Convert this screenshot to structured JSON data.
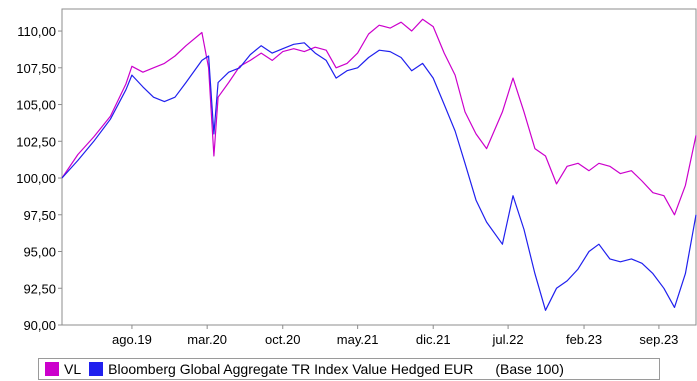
{
  "chart_data": {
    "type": "line",
    "title": "",
    "xlabel": "",
    "ylabel": "",
    "ylim": [
      90,
      111.5
    ],
    "xlim": [
      "2019-01-15",
      "2023-12-15"
    ],
    "yticks": [
      "90,00",
      "92,50",
      "95,00",
      "97,50",
      "100,00",
      "102,50",
      "105,00",
      "107,50",
      "110,00"
    ],
    "ytick_values": [
      90,
      92.5,
      95,
      97.5,
      100,
      102.5,
      105,
      107.5,
      110
    ],
    "xticks": [
      "ago.19",
      "mar.20",
      "oct.20",
      "may.21",
      "dic.21",
      "jul.22",
      "feb.23",
      "sep.23"
    ],
    "xtick_values": [
      "2019-08-01",
      "2020-03-01",
      "2020-10-01",
      "2021-05-01",
      "2021-12-01",
      "2022-07-01",
      "2023-02-01",
      "2023-09-01"
    ],
    "grid": false,
    "legend_position": "bottom",
    "legend_note": "(Base 100)",
    "x": [
      "2019-01-15",
      "2019-03-01",
      "2019-04-15",
      "2019-06-01",
      "2019-07-15",
      "2019-08-01",
      "2019-09-01",
      "2019-10-01",
      "2019-11-01",
      "2019-12-01",
      "2020-01-01",
      "2020-02-15",
      "2020-03-05",
      "2020-03-20",
      "2020-04-01",
      "2020-05-01",
      "2020-06-01",
      "2020-07-01",
      "2020-08-01",
      "2020-09-01",
      "2020-10-01",
      "2020-11-01",
      "2020-12-01",
      "2021-01-01",
      "2021-02-01",
      "2021-03-01",
      "2021-04-01",
      "2021-05-01",
      "2021-06-01",
      "2021-07-01",
      "2021-08-01",
      "2021-09-01",
      "2021-10-01",
      "2021-11-01",
      "2021-12-01",
      "2022-01-01",
      "2022-02-01",
      "2022-03-01",
      "2022-04-01",
      "2022-05-01",
      "2022-06-15",
      "2022-07-15",
      "2022-08-15",
      "2022-09-15",
      "2022-10-15",
      "2022-11-15",
      "2022-12-15",
      "2023-01-15",
      "2023-02-15",
      "2023-03-15",
      "2023-04-15",
      "2023-05-15",
      "2023-06-15",
      "2023-07-15",
      "2023-08-15",
      "2023-09-15",
      "2023-10-15",
      "2023-11-15",
      "2023-12-15"
    ],
    "series": [
      {
        "name": "VL",
        "color": "#cc00cc",
        "values": [
          100.0,
          101.6,
          102.8,
          104.2,
          106.4,
          107.6,
          107.2,
          107.5,
          107.8,
          108.3,
          109.0,
          109.9,
          107.5,
          101.5,
          105.5,
          106.5,
          107.6,
          108.0,
          108.5,
          108.0,
          108.6,
          108.8,
          108.6,
          108.9,
          108.7,
          107.5,
          107.8,
          108.5,
          109.8,
          110.4,
          110.2,
          110.6,
          110.0,
          110.8,
          110.3,
          108.5,
          107.0,
          104.5,
          103.0,
          102.0,
          104.5,
          106.8,
          104.5,
          102.0,
          101.5,
          99.6,
          100.8,
          101.0,
          100.5,
          101.0,
          100.8,
          100.3,
          100.5,
          99.8,
          99.0,
          98.8,
          97.5,
          99.5,
          102.9
        ]
      },
      {
        "name": "Bloomberg Global Aggregate TR Index Value Hedged EUR",
        "color": "#2020ee",
        "values": [
          100.0,
          101.2,
          102.5,
          104.0,
          106.0,
          107.0,
          106.2,
          105.5,
          105.2,
          105.5,
          106.5,
          108.0,
          108.3,
          103.0,
          106.5,
          107.2,
          107.5,
          108.4,
          109.0,
          108.5,
          108.8,
          109.1,
          109.2,
          108.5,
          108.0,
          106.8,
          107.3,
          107.5,
          108.2,
          108.7,
          108.6,
          108.2,
          107.3,
          107.8,
          106.8,
          105.0,
          103.2,
          101.0,
          98.5,
          97.0,
          95.5,
          98.8,
          96.5,
          93.5,
          91.0,
          92.5,
          93.0,
          93.8,
          95.0,
          95.5,
          94.5,
          94.3,
          94.5,
          94.2,
          93.5,
          92.5,
          91.2,
          93.5,
          97.5
        ]
      }
    ]
  }
}
